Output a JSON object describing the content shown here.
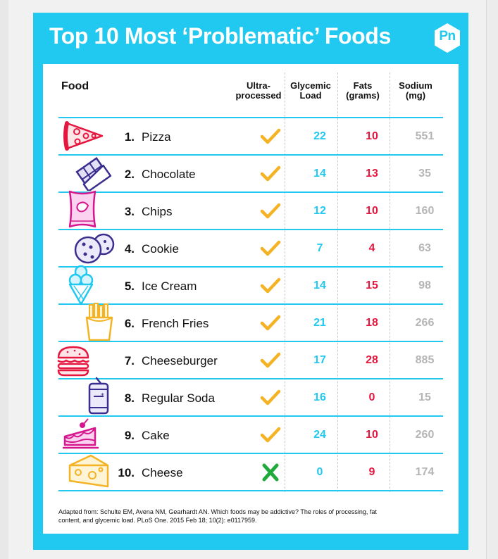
{
  "title": "Top 10 Most ‘Problematic’ Foods",
  "logo_text": "Pn",
  "columns": {
    "food": "Food",
    "ultra_1": "Ultra-",
    "ultra_2": "processed",
    "glycemic_1": "Glycemic",
    "glycemic_2": "Load",
    "fats_1": "Fats",
    "fats_2": "(grams)",
    "sodium_1": "Sodium",
    "sodium_2": "(mg)"
  },
  "rows": [
    {
      "rank": "1.",
      "food": "Pizza",
      "icon": "pizza-icon",
      "ultra_processed": true,
      "glycemic_load": "22",
      "fats": "10",
      "sodium": "551"
    },
    {
      "rank": "2.",
      "food": "Chocolate",
      "icon": "chocolate-icon",
      "ultra_processed": true,
      "glycemic_load": "14",
      "fats": "13",
      "sodium": "35"
    },
    {
      "rank": "3.",
      "food": "Chips",
      "icon": "chips-icon",
      "ultra_processed": true,
      "glycemic_load": "12",
      "fats": "10",
      "sodium": "160"
    },
    {
      "rank": "4.",
      "food": "Cookie",
      "icon": "cookie-icon",
      "ultra_processed": true,
      "glycemic_load": "7",
      "fats": "4",
      "sodium": "63"
    },
    {
      "rank": "5.",
      "food": "Ice Cream",
      "icon": "ice-cream-icon",
      "ultra_processed": true,
      "glycemic_load": "14",
      "fats": "15",
      "sodium": "98"
    },
    {
      "rank": "6.",
      "food": "French Fries",
      "icon": "french-fries-icon",
      "ultra_processed": true,
      "glycemic_load": "21",
      "fats": "18",
      "sodium": "266"
    },
    {
      "rank": "7.",
      "food": "Cheeseburger",
      "icon": "cheeseburger-icon",
      "ultra_processed": true,
      "glycemic_load": "17",
      "fats": "28",
      "sodium": "885"
    },
    {
      "rank": "8.",
      "food": "Regular Soda",
      "icon": "soda-can-icon",
      "ultra_processed": true,
      "glycemic_load": "16",
      "fats": "0",
      "sodium": "15"
    },
    {
      "rank": "9.",
      "food": "Cake",
      "icon": "cake-icon",
      "ultra_processed": true,
      "glycemic_load": "24",
      "fats": "10",
      "sodium": "260"
    },
    {
      "rank": "10.",
      "food": "Cheese",
      "icon": "cheese-icon",
      "ultra_processed": false,
      "glycemic_load": "0",
      "fats": "9",
      "sodium": "174"
    }
  ],
  "footnote": "Adapted from: Schulte EM, Avena NM, Gearhardt AN. Which foods may be addictive? The roles of processing, fat content, and glycemic load. PLoS One. 2015 Feb 18; 10(2): e0117959.",
  "colors": {
    "brand_cyan": "#21c8ef",
    "fat_red": "#e5173f",
    "sodium_gray": "#b5b5b5",
    "check_yellow": "#f4b324",
    "cross_green": "#1faa3b"
  }
}
